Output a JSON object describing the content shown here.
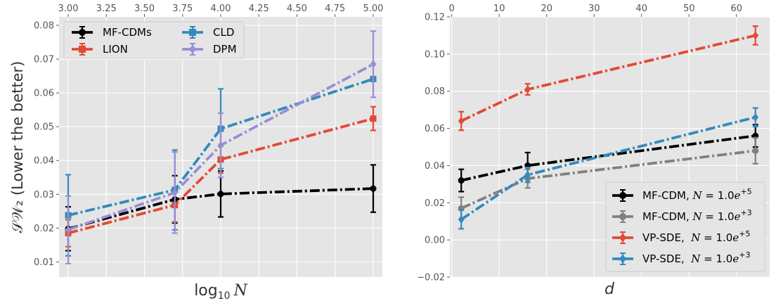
{
  "chart_data": [
    {
      "type": "line",
      "title": "",
      "xlabel": "log₁₀ N",
      "ylabel": "𝒮𝒲₂ (Lower the better)",
      "xlim": [
        2.94,
        5.06
      ],
      "ylim": [
        0.0055,
        0.0825
      ],
      "xticks": [
        "3.00",
        "3.25",
        "3.50",
        "3.75",
        "4.00",
        "4.25",
        "4.50",
        "4.75",
        "5.00"
      ],
      "yticks": [
        "0.01",
        "0.02",
        "0.03",
        "0.04",
        "0.05",
        "0.06",
        "0.07",
        "0.08"
      ],
      "legend_position": "top-left",
      "series": [
        {
          "name": "MF-CDMs",
          "color": "#000000",
          "marker": "circle",
          "dash": "dashdot",
          "x": [
            3.0,
            3.699,
            4.0,
            5.0
          ],
          "y": [
            0.0198,
            0.0285,
            0.0301,
            0.0317
          ],
          "err": [
            0.0065,
            0.007,
            0.0068,
            0.007
          ]
        },
        {
          "name": "LION",
          "color": "#e24a33",
          "marker": "square",
          "dash": "dashdot",
          "x": [
            3.0,
            3.699,
            4.0,
            5.0
          ],
          "y": [
            0.0185,
            0.0268,
            0.0403,
            0.0524
          ],
          "err": [
            0.004,
            0.005,
            0.004,
            0.0035
          ]
        },
        {
          "name": "CLD",
          "color": "#348abd",
          "marker": "square",
          "dash": "dashdot",
          "x": [
            3.0,
            3.699,
            4.0,
            5.0
          ],
          "y": [
            0.0238,
            0.0313,
            0.0494,
            0.0641
          ],
          "err": [
            0.012,
            0.0118,
            0.0118,
            0.0
          ]
        },
        {
          "name": "DPM",
          "color": "#988ed5",
          "marker": "diamond",
          "dash": "dashdot",
          "x": [
            3.0,
            3.699,
            4.0,
            5.0
          ],
          "y": [
            0.0195,
            0.0305,
            0.0445,
            0.0685
          ],
          "err": [
            0.01,
            0.012,
            0.0095,
            0.0098
          ]
        }
      ]
    },
    {
      "type": "line",
      "title": "",
      "xlabel": "d",
      "ylabel": "",
      "xlim": [
        -0.4,
        67.0
      ],
      "ylim": [
        -0.02,
        0.12
      ],
      "xticks": [
        "0",
        "10",
        "20",
        "30",
        "40",
        "50",
        "60"
      ],
      "yticks": [
        "−0.02",
        "0.00",
        "0.02",
        "0.04",
        "0.06",
        "0.08",
        "0.10",
        "0.12"
      ],
      "legend_position": "lower-right",
      "series": [
        {
          "name": "MF-CDM, N = 1.0e+5",
          "color": "#000000",
          "marker": "circle",
          "dash": "dashdot",
          "x": [
            2,
            16,
            64
          ],
          "y": [
            0.032,
            0.04,
            0.056
          ],
          "err": [
            0.006,
            0.007,
            0.006
          ]
        },
        {
          "name": "MF-CDM, N = 1.0e+3",
          "color": "#808080",
          "marker": "circle",
          "dash": "dashdot",
          "x": [
            2,
            16,
            64
          ],
          "y": [
            0.017,
            0.033,
            0.048
          ],
          "err": [
            0.006,
            0.005,
            0.007
          ]
        },
        {
          "name": "VP-SDE,  N = 1.0e+5",
          "color": "#e24a33",
          "marker": "diamond",
          "dash": "dashdot",
          "x": [
            2,
            16,
            64
          ],
          "y": [
            0.064,
            0.081,
            0.11
          ],
          "err": [
            0.005,
            0.003,
            0.005
          ]
        },
        {
          "name": "VP-SDE,  N = 1.0e+3",
          "color": "#348abd",
          "marker": "diamond",
          "dash": "dashdot",
          "x": [
            2,
            16,
            64
          ],
          "y": [
            0.011,
            0.035,
            0.066
          ],
          "err": [
            0.005,
            0.004,
            0.005
          ]
        }
      ]
    }
  ],
  "legend_left": [
    {
      "label": "MF-CDMs",
      "color": "#000000",
      "marker": "circle"
    },
    {
      "label": "LION",
      "color": "#e24a33",
      "marker": "square"
    },
    {
      "label": "CLD",
      "color": "#348abd",
      "marker": "square"
    },
    {
      "label": "DPM",
      "color": "#988ed5",
      "marker": "diamond"
    }
  ],
  "legend_right": [
    {
      "prefix": "MF-CDM, ",
      "n_text": "N",
      "eq_text": " = 1.0",
      "base_text": "e",
      "exp_text": "+5",
      "color": "#000000",
      "marker": "circle"
    },
    {
      "prefix": "MF-CDM, ",
      "n_text": "N",
      "eq_text": " = 1.0",
      "base_text": "e",
      "exp_text": "+3",
      "color": "#808080",
      "marker": "circle"
    },
    {
      "prefix": "VP-SDE,  ",
      "n_text": "N",
      "eq_text": " = 1.0",
      "base_text": "e",
      "exp_text": "+5",
      "color": "#e24a33",
      "marker": "diamond"
    },
    {
      "prefix": "VP-SDE,  ",
      "n_text": "N",
      "eq_text": " = 1.0",
      "base_text": "e",
      "exp_text": "+3",
      "color": "#348abd",
      "marker": "diamond"
    }
  ],
  "labels": {
    "left_x_main": "log",
    "left_x_sub": "10",
    "left_x_var": "N",
    "left_y": "𝒮𝒲₂ (Lower the better)",
    "right_x": "d"
  }
}
